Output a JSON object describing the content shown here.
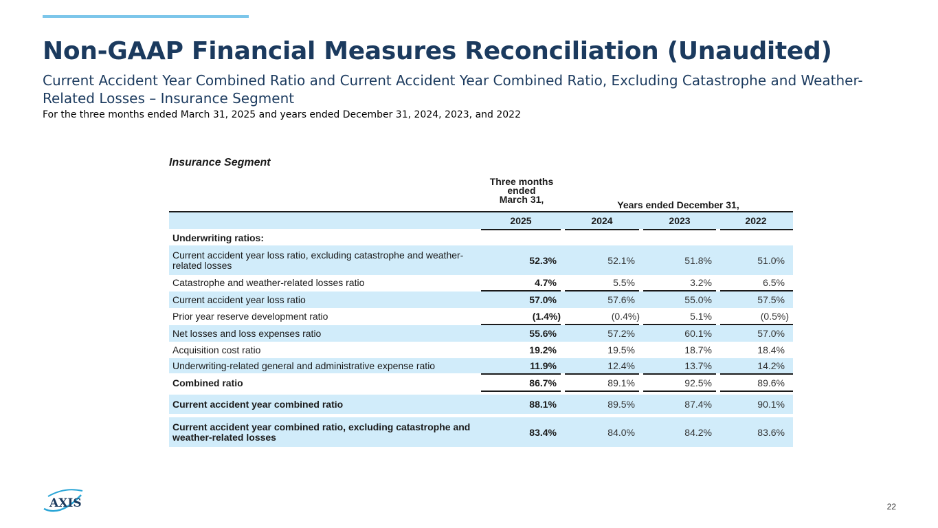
{
  "header": {
    "title": "Non-GAAP Financial Measures Reconciliation (Unaudited)",
    "subtitle": "Current Accident Year Combined Ratio and Current Accident Year Combined Ratio, Excluding Catastrophe and Weather-Related Losses – Insurance Segment",
    "period": "For the three months ended March 31, 2025 and years ended December 31, 2024, 2023, and 2022"
  },
  "table": {
    "segment_title": "Insurance Segment",
    "three_months_header": [
      "Three months",
      "ended",
      "March 31,"
    ],
    "years_header": "Years ended December 31,",
    "years": [
      "2025",
      "2024",
      "2023",
      "2022"
    ],
    "section_label": "Underwriting ratios:",
    "rows": [
      {
        "label": "Current accident year loss ratio, excluding catastrophe and weather-related losses",
        "values": [
          "52.3%",
          "52.1%",
          "51.8%",
          "51.0%"
        ]
      },
      {
        "label": "Catastrophe and weather-related losses ratio",
        "values": [
          "4.7%",
          "5.5%",
          "3.2%",
          "6.5%"
        ]
      },
      {
        "label": "Current accident year loss ratio",
        "values": [
          "57.0%",
          "57.6%",
          "55.0%",
          "57.5%"
        ]
      },
      {
        "label": "Prior year reserve development ratio",
        "values": [
          "(1.4%)",
          "(0.4%)",
          "5.1%",
          "(0.5%)"
        ]
      },
      {
        "label": "Net losses and loss expenses ratio",
        "values": [
          "55.6%",
          "57.2%",
          "60.1%",
          "57.0%"
        ]
      },
      {
        "label": "Acquisition cost ratio",
        "values": [
          "19.2%",
          "19.5%",
          "18.7%",
          "18.4%"
        ]
      },
      {
        "label": "Underwriting-related general and administrative expense ratio",
        "values": [
          "11.9%",
          "12.4%",
          "13.7%",
          "14.2%"
        ]
      },
      {
        "label": "Combined ratio",
        "values": [
          "86.7%",
          "89.1%",
          "92.5%",
          "89.6%"
        ]
      },
      {
        "label": "Current accident year combined ratio",
        "values": [
          "88.1%",
          "89.5%",
          "87.4%",
          "90.1%"
        ]
      },
      {
        "label": "Current accident year combined ratio, excluding catastrophe and weather-related losses",
        "values": [
          "83.4%",
          "84.0%",
          "84.2%",
          "83.6%"
        ]
      }
    ]
  },
  "footer": {
    "logo_text": "AXIS",
    "page_number": "22"
  },
  "colors": {
    "title": "#1b3a5e",
    "accent": "#7cc6ea",
    "row_shade": "#d1ecfa"
  }
}
